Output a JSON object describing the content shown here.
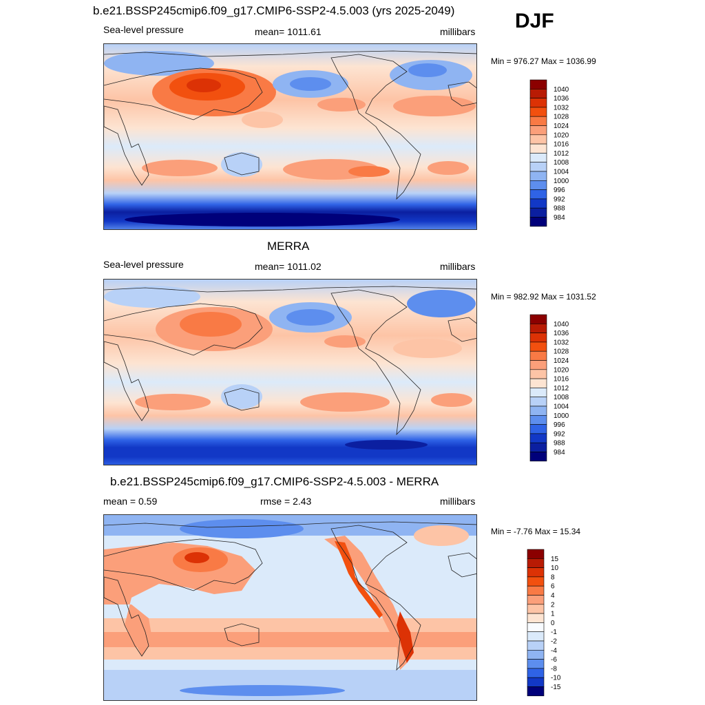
{
  "season": "DJF",
  "panels": [
    {
      "title": "b.e21.BSSP245cmip6.f09_g17.CMIP6-SSP2-4.5.003 (yrs 2025-2049)",
      "left_label": "Sea-level pressure",
      "center_label": "mean= 1011.61",
      "right_label": "millibars",
      "minmax": "Min = 976.27 Max = 1036.99",
      "colorbar_labels": [
        "1040",
        "1036",
        "1032",
        "1028",
        "1024",
        "1020",
        "1016",
        "1012",
        "1008",
        "1004",
        "1000",
        "996",
        "992",
        "988",
        "984"
      ]
    },
    {
      "title": "MERRA",
      "left_label": "Sea-level pressure",
      "center_label": "mean= 1011.02",
      "right_label": "millibars",
      "minmax": "Min = 982.92 Max = 1031.52",
      "colorbar_labels": [
        "1040",
        "1036",
        "1032",
        "1028",
        "1024",
        "1020",
        "1016",
        "1012",
        "1008",
        "1004",
        "1000",
        "996",
        "992",
        "988",
        "984"
      ]
    },
    {
      "title": "b.e21.BSSP245cmip6.f09_g17.CMIP6-SSP2-4.5.003 - MERRA",
      "left_label": "mean =   0.59",
      "center_label": "rmse =   2.43",
      "right_label": "millibars",
      "minmax": "Min =  -7.76 Max =  15.34",
      "colorbar_labels": [
        "15",
        "10",
        "8",
        "6",
        "4",
        "2",
        "1",
        "0",
        "-1",
        "-2",
        "-4",
        "-6",
        "-8",
        "-10",
        "-15"
      ]
    }
  ],
  "colors": {
    "abs_scale": [
      "#8b0000",
      "#b81b04",
      "#dc3205",
      "#f2500f",
      "#f97a45",
      "#fb9f7a",
      "#fdc4a6",
      "#fde4d2",
      "#dbeafa",
      "#b8d1f7",
      "#8fb4f2",
      "#5d8eee",
      "#2f63e6",
      "#1238c6",
      "#0b1fa0",
      "#00007a"
    ],
    "diff_scale": [
      "#8b0000",
      "#b81b04",
      "#dc3205",
      "#f2500f",
      "#f97a45",
      "#fb9f7a",
      "#fdc4a6",
      "#fde4d2",
      "#f8fbff",
      "#dbeafa",
      "#b8d1f7",
      "#8fb4f2",
      "#5d8eee",
      "#2f63e6",
      "#1238c6",
      "#00007a"
    ]
  }
}
